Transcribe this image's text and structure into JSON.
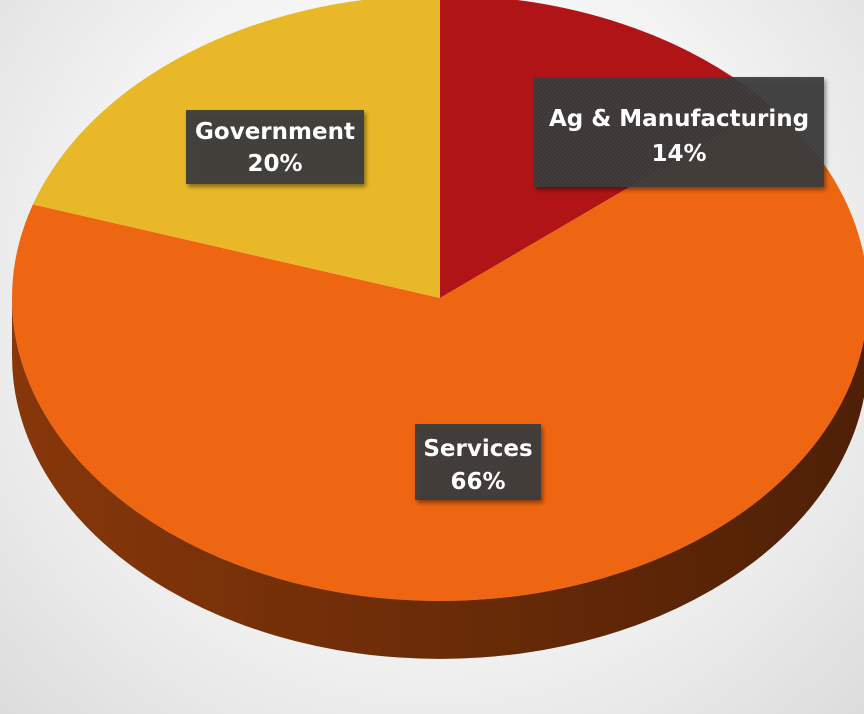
{
  "chart_data": {
    "type": "pie",
    "style": "3d",
    "slices": [
      {
        "label": "Ag & Manufacturing",
        "value": 14,
        "value_label": "14%",
        "color": "#b01416",
        "side_color": "#6e0c0c"
      },
      {
        "label": "Services",
        "value": 66,
        "value_label": "66%",
        "color": "#ee6612",
        "side_color": "#8e3a0a"
      },
      {
        "label": "Government",
        "value": 20,
        "value_label": "20%",
        "color": "#e8b828",
        "side_color": "#8a6a14"
      }
    ],
    "start_angle_deg": -90,
    "direction": "clockwise",
    "legend": "none",
    "data_labels": "category-and-percent"
  }
}
